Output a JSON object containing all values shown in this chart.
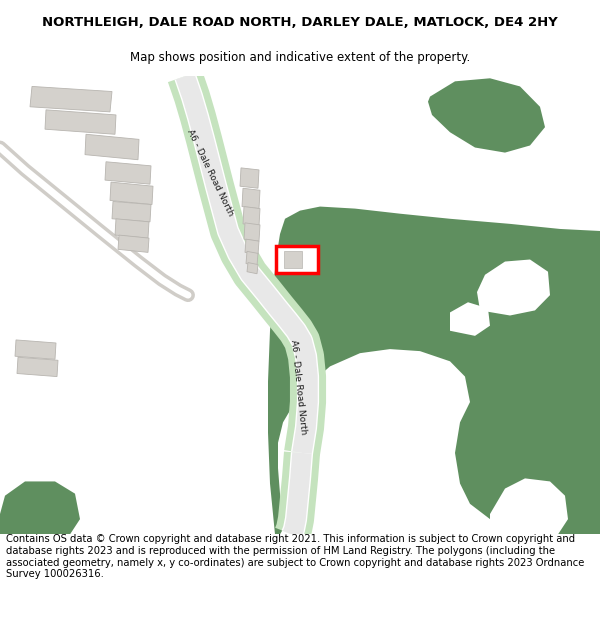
{
  "title": "NORTHLEIGH, DALE ROAD NORTH, DARLEY DALE, MATLOCK, DE4 2HY",
  "subtitle": "Map shows position and indicative extent of the property.",
  "footer": "Contains OS data © Crown copyright and database right 2021. This information is subject to Crown copyright and database rights 2023 and is reproduced with the permission of HM Land Registry. The polygons (including the associated geometry, namely x, y co-ordinates) are subject to Crown copyright and database rights 2023 Ordnance Survey 100026316.",
  "map_bg": "#efefed",
  "road_green_light": "#c5e3be",
  "green_area": "#5f8f5f",
  "building_color": "#d4d1cc",
  "building_outline": "#b8b5b0",
  "plot_outline": "#ff0000",
  "road_label": "A6 - Dale Road North",
  "title_fontsize": 9.5,
  "subtitle_fontsize": 8.5,
  "footer_fontsize": 7.2
}
